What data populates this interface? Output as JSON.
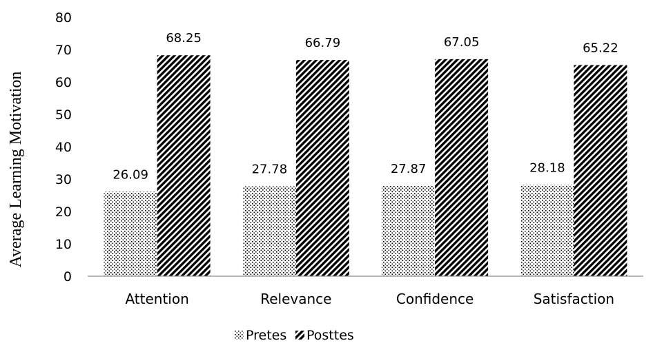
{
  "chart_data": {
    "type": "bar",
    "categories": [
      "Attention",
      "Relevance",
      "Confidence",
      "Satisfaction"
    ],
    "series": [
      {
        "name": "Pretes",
        "values": [
          26.09,
          27.78,
          27.87,
          28.18
        ],
        "pattern": "dots"
      },
      {
        "name": "Posttes",
        "values": [
          68.25,
          66.79,
          67.05,
          65.22
        ],
        "pattern": "diagonal-hatch"
      }
    ],
    "data_labels": [
      [
        "26.09",
        "27.78",
        "27.87",
        "28.18"
      ],
      [
        "68.25",
        "66.79",
        "67.05",
        "65.22"
      ]
    ],
    "ylabel": "Average Learning Motivation",
    "xlabel": "",
    "ylim": [
      0,
      80
    ],
    "yticks": [
      "0",
      "10",
      "20",
      "30",
      "40",
      "50",
      "60",
      "70",
      "80"
    ],
    "grid": false,
    "legend_position": "bottom",
    "colors": {
      "bar_ink": "#000000",
      "background": "#ffffff"
    }
  }
}
